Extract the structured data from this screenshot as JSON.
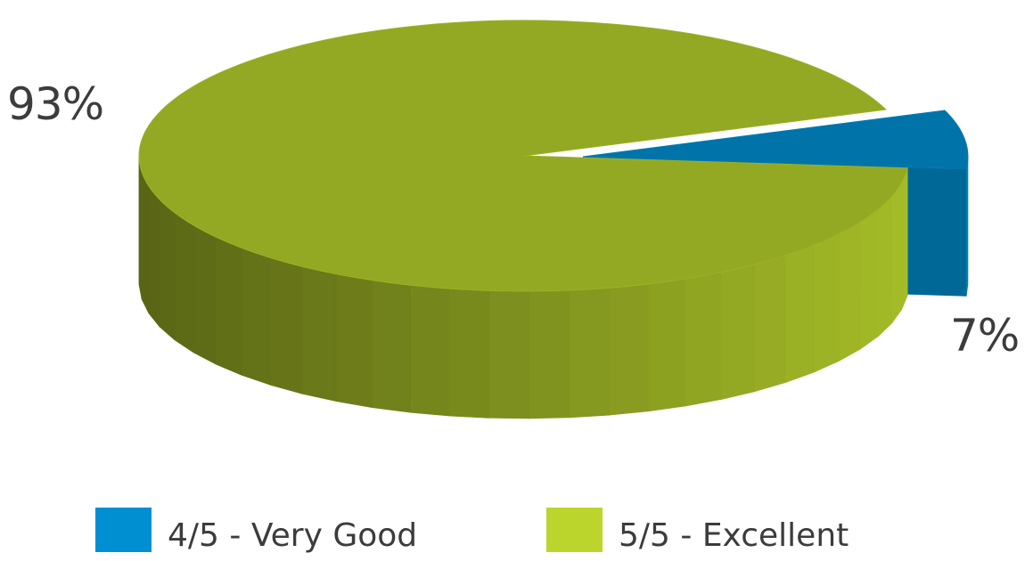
{
  "chart_data": {
    "type": "pie",
    "style": "3d-exploded",
    "title": "",
    "categories": [
      "4/5 - Very Good",
      "5/5 - Excellent"
    ],
    "values": [
      7,
      93
    ],
    "value_labels": [
      "7%",
      "93%"
    ],
    "exploded": [
      "4/5 - Very Good"
    ],
    "legend_position": "bottom",
    "colors": {
      "4/5 - Very Good": "#0073a8",
      "5/5 - Excellent": "#93a823"
    },
    "legend_colors": {
      "4/5 - Very Good": "#008fd1",
      "5/5 - Excellent": "#bcd52c"
    }
  }
}
